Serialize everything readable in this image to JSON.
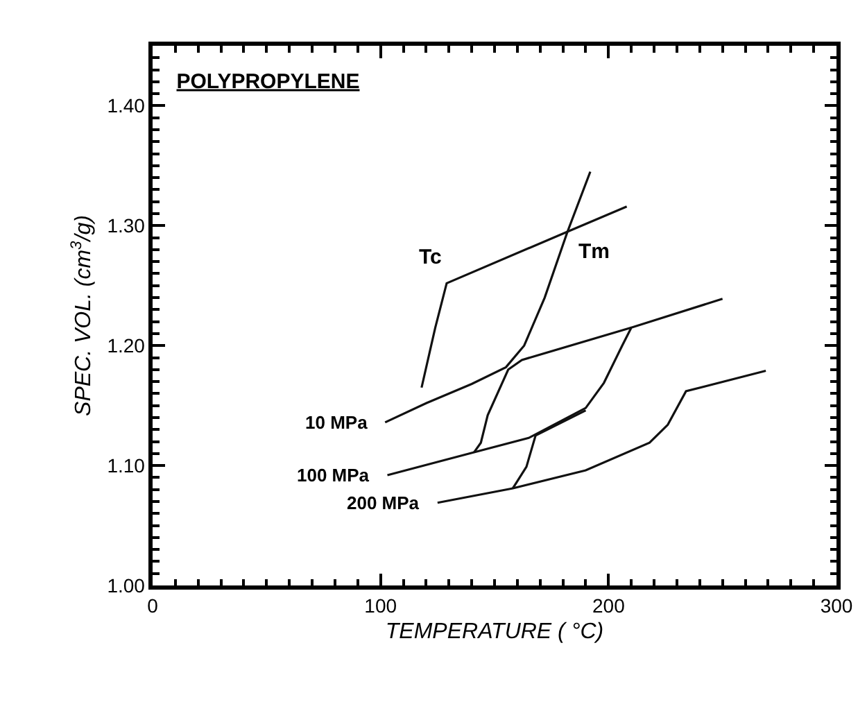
{
  "chart_data": {
    "type": "line",
    "title": "POLYPROPYLENE",
    "xlabel": "TEMPERATURE ( °C)",
    "ylabel": "SPEC. VOL. (cm$^{3}$/g)",
    "xlim": [
      0,
      300
    ],
    "ylim": [
      1.0,
      1.45
    ],
    "xticks": [
      0,
      100,
      200,
      300
    ],
    "yticks": [
      {
        "value": 1.0,
        "label": "1.00"
      },
      {
        "value": 1.1,
        "label": "1.10"
      },
      {
        "value": 1.2,
        "label": "1.20"
      },
      {
        "value": 1.3,
        "label": "1.30"
      },
      {
        "value": 1.4,
        "label": "1.40"
      }
    ],
    "grid": false,
    "legend": false,
    "line_style": "solid",
    "series": [
      {
        "name": "10 MPa",
        "color": "#111111",
        "x": [
          102,
          120,
          140,
          155,
          163,
          172,
          182,
          208
        ],
        "values": [
          1.136,
          1.152,
          1.168,
          1.182,
          1.2,
          1.24,
          1.295,
          1.316
        ]
      },
      {
        "color": "#111111",
        "x": [
          192,
          182,
          129,
          124,
          118
        ],
        "values": [
          1.345,
          1.295,
          1.252,
          1.215,
          1.165
        ]
      },
      {
        "name": "100 MPa",
        "color": "#111111",
        "x": [
          103,
          139,
          165,
          190,
          198,
          206,
          210,
          250
        ],
        "values": [
          1.092,
          1.11,
          1.123,
          1.148,
          1.169,
          1.2,
          1.215,
          1.239
        ]
      },
      {
        "color": "#111111",
        "x": [
          210,
          162,
          156,
          147,
          144,
          141
        ],
        "values": [
          1.215,
          1.188,
          1.18,
          1.142,
          1.119,
          1.111
        ]
      },
      {
        "name": "200 MPa",
        "color": "#111111",
        "x": [
          125,
          158,
          190,
          218,
          226,
          234,
          269
        ],
        "values": [
          1.069,
          1.081,
          1.096,
          1.119,
          1.134,
          1.162,
          1.179
        ]
      },
      {
        "color": "#111111",
        "x": [
          190,
          168,
          164,
          159,
          158
        ],
        "values": [
          1.146,
          1.125,
          1.099,
          1.084,
          1.081
        ]
      }
    ],
    "annotations": [
      {
        "text": "Tc",
        "x": 129,
        "y": 1.252
      },
      {
        "text": "Tm",
        "x": 182,
        "y": 1.295
      }
    ]
  }
}
